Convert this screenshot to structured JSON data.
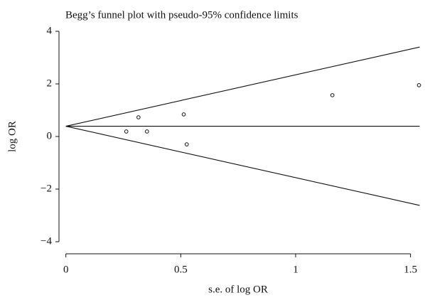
{
  "chart_data": {
    "type": "scatter",
    "title": "Begg’s funnel plot with pseudo-95% confidence limits",
    "xlabel": "s.e. of log OR",
    "ylabel": "log OR",
    "x": [
      0.263,
      0.316,
      0.353,
      0.513,
      0.526,
      1.16,
      1.537
    ],
    "values": [
      0.19,
      0.73,
      0.19,
      0.84,
      -0.3,
      1.57,
      1.95
    ],
    "color": "#111111",
    "lines": [
      {
        "x": [
          0,
          1.54
        ],
        "values": [
          0.39,
          3.4
        ]
      },
      {
        "x": [
          0,
          1.54
        ],
        "values": [
          0.39,
          0.39
        ]
      },
      {
        "x": [
          0,
          1.54
        ],
        "values": [
          0.39,
          -2.62
        ]
      }
    ],
    "xlim": [
      -0.03,
      1.56
    ],
    "ylim": [
      -4,
      4
    ],
    "xticks": [
      0,
      0.5,
      1,
      1.5
    ],
    "yticks": [
      {
        "value": -4,
        "label": "−4"
      },
      {
        "value": -2,
        "label": "−2"
      },
      0,
      2,
      4
    ]
  }
}
